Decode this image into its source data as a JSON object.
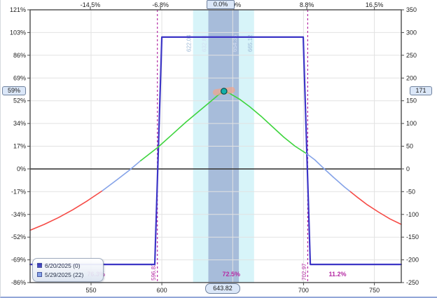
{
  "chart_data": {
    "type": "line",
    "description": "Options position risk profile (P&L vs underlying price) with expiration and T+22 curves",
    "x_range": [
      507,
      769
    ],
    "y_range": [
      -250,
      350
    ],
    "x_gridlines": [
      550,
      600,
      650,
      700,
      750
    ],
    "y_gridlines": [
      -200,
      -150,
      -100,
      -50,
      50,
      100,
      150,
      200,
      250,
      300
    ],
    "x_ticks": [
      {
        "label": "550",
        "price": 550
      },
      {
        "label": "600",
        "price": 600
      },
      {
        "label": "700",
        "price": 700
      },
      {
        "label": "750",
        "price": 750
      }
    ],
    "top_ticks": [
      {
        "label": "-14.5%",
        "price": 549.5
      },
      {
        "label": "-6.8%",
        "price": 599.0
      },
      {
        "label": "0.0%",
        "price": 650.8
      },
      {
        "label": "8.8%",
        "price": 702.3
      },
      {
        "label": "16.5%",
        "price": 750.0
      }
    ],
    "left_ticks": [
      {
        "label": "121%",
        "value": 350
      },
      {
        "label": "103%",
        "value": 300
      },
      {
        "label": "86%",
        "value": 250
      },
      {
        "label": "69%",
        "value": 200
      },
      {
        "label": "52%",
        "value": 150
      },
      {
        "label": "34%",
        "value": 100
      },
      {
        "label": "17%",
        "value": 50
      },
      {
        "label": "0%",
        "value": 0
      },
      {
        "label": "-17%",
        "value": -50
      },
      {
        "label": "-34%",
        "value": -100
      },
      {
        "label": "-52%",
        "value": -150
      },
      {
        "label": "-69%",
        "value": -200
      },
      {
        "label": "-86%",
        "value": -250
      }
    ],
    "right_ticks": [
      {
        "label": "350",
        "value": 350
      },
      {
        "label": "300",
        "value": 300
      },
      {
        "label": "250",
        "value": 250
      },
      {
        "label": "200",
        "value": 200
      },
      {
        "label": "150",
        "value": 150
      },
      {
        "label": "100",
        "value": 100
      },
      {
        "label": "50",
        "value": 50
      },
      {
        "label": "0",
        "value": 0
      },
      {
        "label": "-50",
        "value": -50
      },
      {
        "label": "-100",
        "value": -100
      },
      {
        "label": "-150",
        "value": -150
      },
      {
        "label": "-200",
        "value": -200
      },
      {
        "label": "-250",
        "value": -250
      }
    ],
    "current": {
      "price": 643.82,
      "price_label": "643.82",
      "value": 171,
      "value_label": "171",
      "pct_left_label": "59%",
      "pct_top_label": "0.0%"
    },
    "marker": {
      "price": 643.82,
      "value": 171
    },
    "bands": [
      {
        "name": "expected-move-outer",
        "from": 622.04,
        "to": 665.12,
        "color": "#d7f4f9",
        "label_color": "#9db9d6",
        "labels": [
          {
            "price": 622.04,
            "text": "622.04"
          },
          {
            "price": 665.12,
            "text": "665.12"
          }
        ]
      },
      {
        "name": "expected-move-inner",
        "from": 632.81,
        "to": 654.35,
        "color": "#a7bcda",
        "label_color": "#d3ddf2",
        "labels": [
          {
            "price": 632.81,
            "text": "632.81"
          },
          {
            "price": 654.35,
            "text": "654.35"
          }
        ]
      }
    ],
    "breakevens": [
      {
        "price": 596.83,
        "label": "596.83"
      },
      {
        "price": 702.97,
        "label": "702.97"
      }
    ],
    "range_labels": [
      {
        "price": 553.5,
        "text": "76.3%"
      },
      {
        "price": 649.0,
        "text": "72.5%"
      },
      {
        "price": 724.0,
        "text": "11.2%"
      }
    ],
    "series": [
      {
        "name": "6/20/2025 (0)",
        "legend_color": "#3d3dbe",
        "width": 2.2,
        "data_name": "series-expiration-line",
        "segments": [
          {
            "color": "#3c35c6",
            "points": [
              [
                507,
                -210
              ],
              [
                595,
                -210
              ],
              [
                600,
                290
              ],
              [
                699.8,
                290
              ],
              [
                704.8,
                -210
              ],
              [
                769,
                -210
              ]
            ]
          }
        ]
      },
      {
        "name": "5/29/2025 (22)",
        "legend_color": "#7e9fe8",
        "width": 1.6,
        "data_name": "series-t-plus-22-curve",
        "segments": [
          {
            "color": "#f64b46",
            "points": [
              [
                507,
                -135
              ],
              [
                517,
                -122
              ],
              [
                527,
                -107
              ],
              [
                537,
                -90
              ],
              [
                547,
                -71
              ],
              [
                558,
                -48
              ]
            ]
          },
          {
            "color": "#85a3e8",
            "points": [
              [
                558,
                -48
              ],
              [
                567,
                -27
              ],
              [
                577,
                -3
              ],
              [
                585,
                18
              ]
            ]
          },
          {
            "color": "#3ed43e",
            "points": [
              [
                585,
                18
              ],
              [
                597,
                47
              ],
              [
                607,
                75
              ],
              [
                617,
                103
              ],
              [
                627,
                129
              ],
              [
                635,
                150
              ],
              [
                640,
                163
              ],
              [
                643.82,
                171
              ],
              [
                648,
                166
              ],
              [
                655,
                153
              ],
              [
                662,
                137
              ],
              [
                670,
                116
              ],
              [
                678,
                93
              ],
              [
                686,
                70
              ],
              [
                694,
                50
              ],
              [
                702,
                34
              ]
            ]
          },
          {
            "color": "#85a3e8",
            "points": [
              [
                702,
                34
              ],
              [
                708,
                20
              ],
              [
                714,
                2
              ],
              [
                721,
                -18
              ],
              [
                729,
                -40
              ],
              [
                733,
                -50
              ]
            ]
          },
          {
            "color": "#f64b46",
            "points": [
              [
                733,
                -50
              ],
              [
                737,
                -60
              ],
              [
                745,
                -79
              ],
              [
                753,
                -95
              ],
              [
                761,
                -110
              ],
              [
                769,
                -122
              ]
            ]
          }
        ]
      }
    ],
    "colors": {
      "grid": "#e2e2e2",
      "frame": "#4a4a4a",
      "zero_line": "#3c3c3c",
      "breakeven": "#b52ba4",
      "tick_text": "#222222",
      "marker_fill": "#14b0aa",
      "marker_stroke": "#074f4f",
      "marker_highlight": "#f2a489"
    }
  }
}
